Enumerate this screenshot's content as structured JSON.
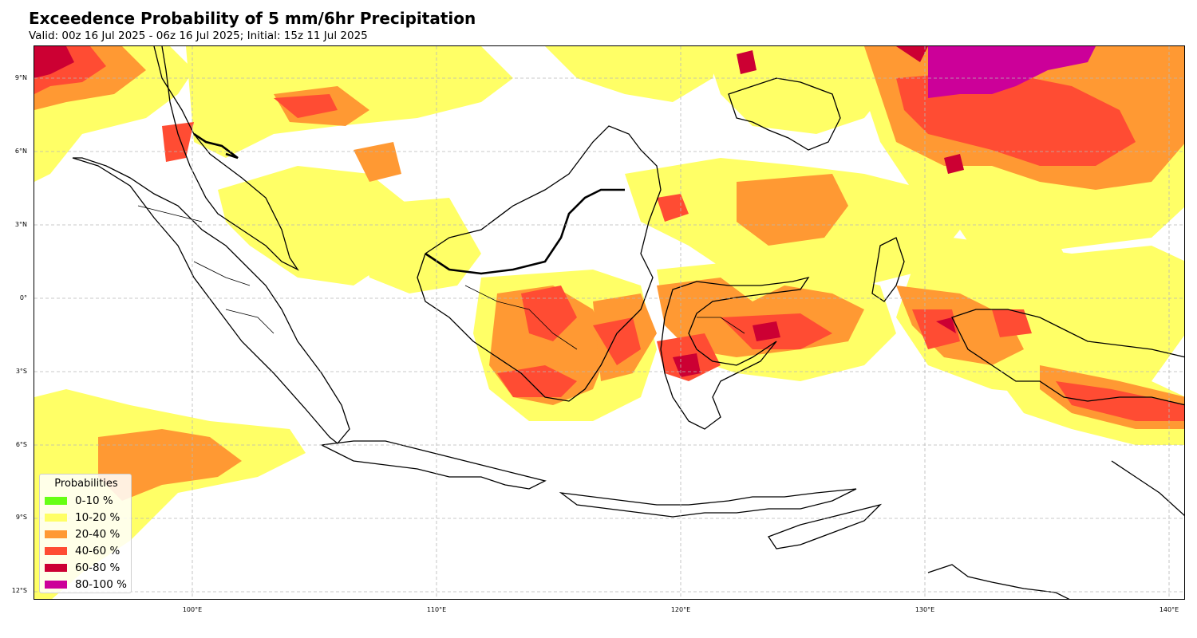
{
  "title": "Exceedence Probability of 5 mm/6hr Precipitation",
  "subtitle": "Valid: 00z 16 Jul 2025 - 06z 16 Jul 2025; Initial: 15z 11 Jul 2025",
  "map": {
    "lat_labels": [
      "9°N",
      "6°N",
      "3°N",
      "0°",
      "3°S",
      "6°S",
      "9°S",
      "12°S"
    ],
    "lon_labels": [
      "100°E",
      "110°E",
      "120°E",
      "130°E",
      "140°E"
    ],
    "grid": true
  },
  "legend": {
    "title": "Probabilities",
    "items": [
      {
        "label": "0-10 %",
        "color": "#66ff14"
      },
      {
        "label": "10-20 %",
        "color": "#ffff66"
      },
      {
        "label": "20-40 %",
        "color": "#ff9933"
      },
      {
        "label": "40-60 %",
        "color": "#ff4c33"
      },
      {
        "label": "60-80 %",
        "color": "#cc0033"
      },
      {
        "label": "80-100 %",
        "color": "#cc0099"
      }
    ]
  }
}
